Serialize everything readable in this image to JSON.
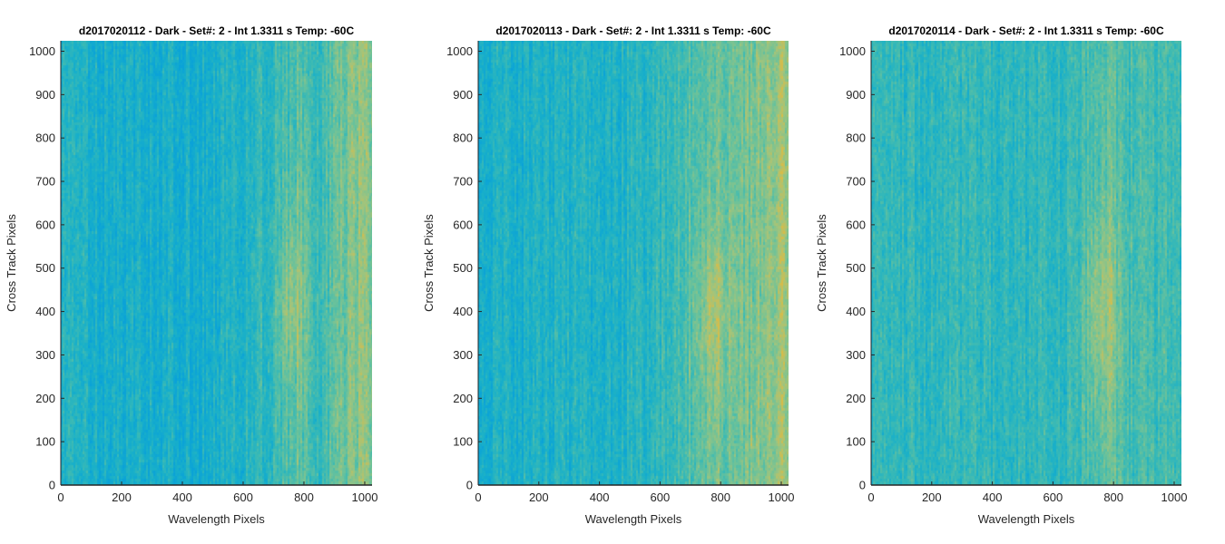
{
  "figure": {
    "background": "#ffffff"
  },
  "colormap": {
    "name": "parula-like",
    "stops": [
      "#0aa2d8",
      "#19b0c9",
      "#3cbab4",
      "#6cc29a",
      "#a2c47c",
      "#d8bc48"
    ]
  },
  "chart_data": [
    {
      "type": "heatmap",
      "title": "d2017020112 - Dark - Set#: 2 - Int 1.3311 s Temp: -60C",
      "xlabel": "Wavelength Pixels",
      "ylabel": "Cross Track Pixels",
      "xlim": [
        0,
        1024
      ],
      "ylim": [
        0,
        1024
      ],
      "xticks": [
        0,
        200,
        400,
        600,
        800,
        1000
      ],
      "yticks": [
        0,
        100,
        200,
        300,
        400,
        500,
        600,
        700,
        800,
        900,
        1000
      ],
      "xtick_labels": [
        "0",
        "200",
        "400",
        "600",
        "800",
        "1000"
      ],
      "ytick_labels": [
        "0",
        "100",
        "200",
        "300",
        "400",
        "500",
        "600",
        "700",
        "800",
        "900",
        "1000"
      ],
      "column_profile": {
        "x": [
          0,
          150,
          300,
          450,
          550,
          650,
          720,
          770,
          850,
          930,
          1000,
          1024
        ],
        "level": [
          0.25,
          0.18,
          0.2,
          0.17,
          0.24,
          0.32,
          0.38,
          0.52,
          0.38,
          0.6,
          0.75,
          0.72
        ]
      },
      "hotspot": {
        "x": 760,
        "y": 420,
        "level": 0.25
      }
    },
    {
      "type": "heatmap",
      "title": "d2017020113 - Dark - Set#: 2 - Int 1.3311 s Temp: -60C",
      "xlabel": "Wavelength Pixels",
      "ylabel": "Cross Track Pixels",
      "xlim": [
        0,
        1024
      ],
      "ylim": [
        0,
        1024
      ],
      "xticks": [
        0,
        200,
        400,
        600,
        800,
        1000
      ],
      "yticks": [
        0,
        100,
        200,
        300,
        400,
        500,
        600,
        700,
        800,
        900,
        1000
      ],
      "xtick_labels": [
        "0",
        "200",
        "400",
        "600",
        "800",
        "1000"
      ],
      "ytick_labels": [
        "0",
        "100",
        "200",
        "300",
        "400",
        "500",
        "600",
        "700",
        "800",
        "900",
        "1000"
      ],
      "column_profile": {
        "x": [
          0,
          150,
          300,
          450,
          550,
          650,
          720,
          770,
          850,
          930,
          1000,
          1024
        ],
        "level": [
          0.2,
          0.22,
          0.25,
          0.22,
          0.3,
          0.4,
          0.52,
          0.62,
          0.55,
          0.68,
          0.82,
          0.85
        ]
      },
      "hotspot": {
        "x": 770,
        "y": 380,
        "level": 0.25
      }
    },
    {
      "type": "heatmap",
      "title": "d2017020114 - Dark - Set#: 2 - Int 1.3311 s Temp: -60C",
      "xlabel": "Wavelength Pixels",
      "ylabel": "Cross Track Pixels",
      "xlim": [
        0,
        1024
      ],
      "ylim": [
        0,
        1024
      ],
      "xticks": [
        0,
        200,
        400,
        600,
        800,
        1000
      ],
      "yticks": [
        0,
        100,
        200,
        300,
        400,
        500,
        600,
        700,
        800,
        900,
        1000
      ],
      "xtick_labels": [
        "0",
        "200",
        "400",
        "600",
        "800",
        "1000"
      ],
      "ytick_labels": [
        "0",
        "100",
        "200",
        "300",
        "400",
        "500",
        "600",
        "700",
        "800",
        "900",
        "1000"
      ],
      "column_profile": {
        "x": [
          0,
          150,
          300,
          450,
          550,
          650,
          720,
          770,
          850,
          930,
          1000,
          1024
        ],
        "level": [
          0.3,
          0.32,
          0.35,
          0.3,
          0.32,
          0.36,
          0.45,
          0.55,
          0.42,
          0.4,
          0.42,
          0.4
        ]
      },
      "hotspot": {
        "x": 760,
        "y": 400,
        "level": 0.28
      }
    }
  ]
}
